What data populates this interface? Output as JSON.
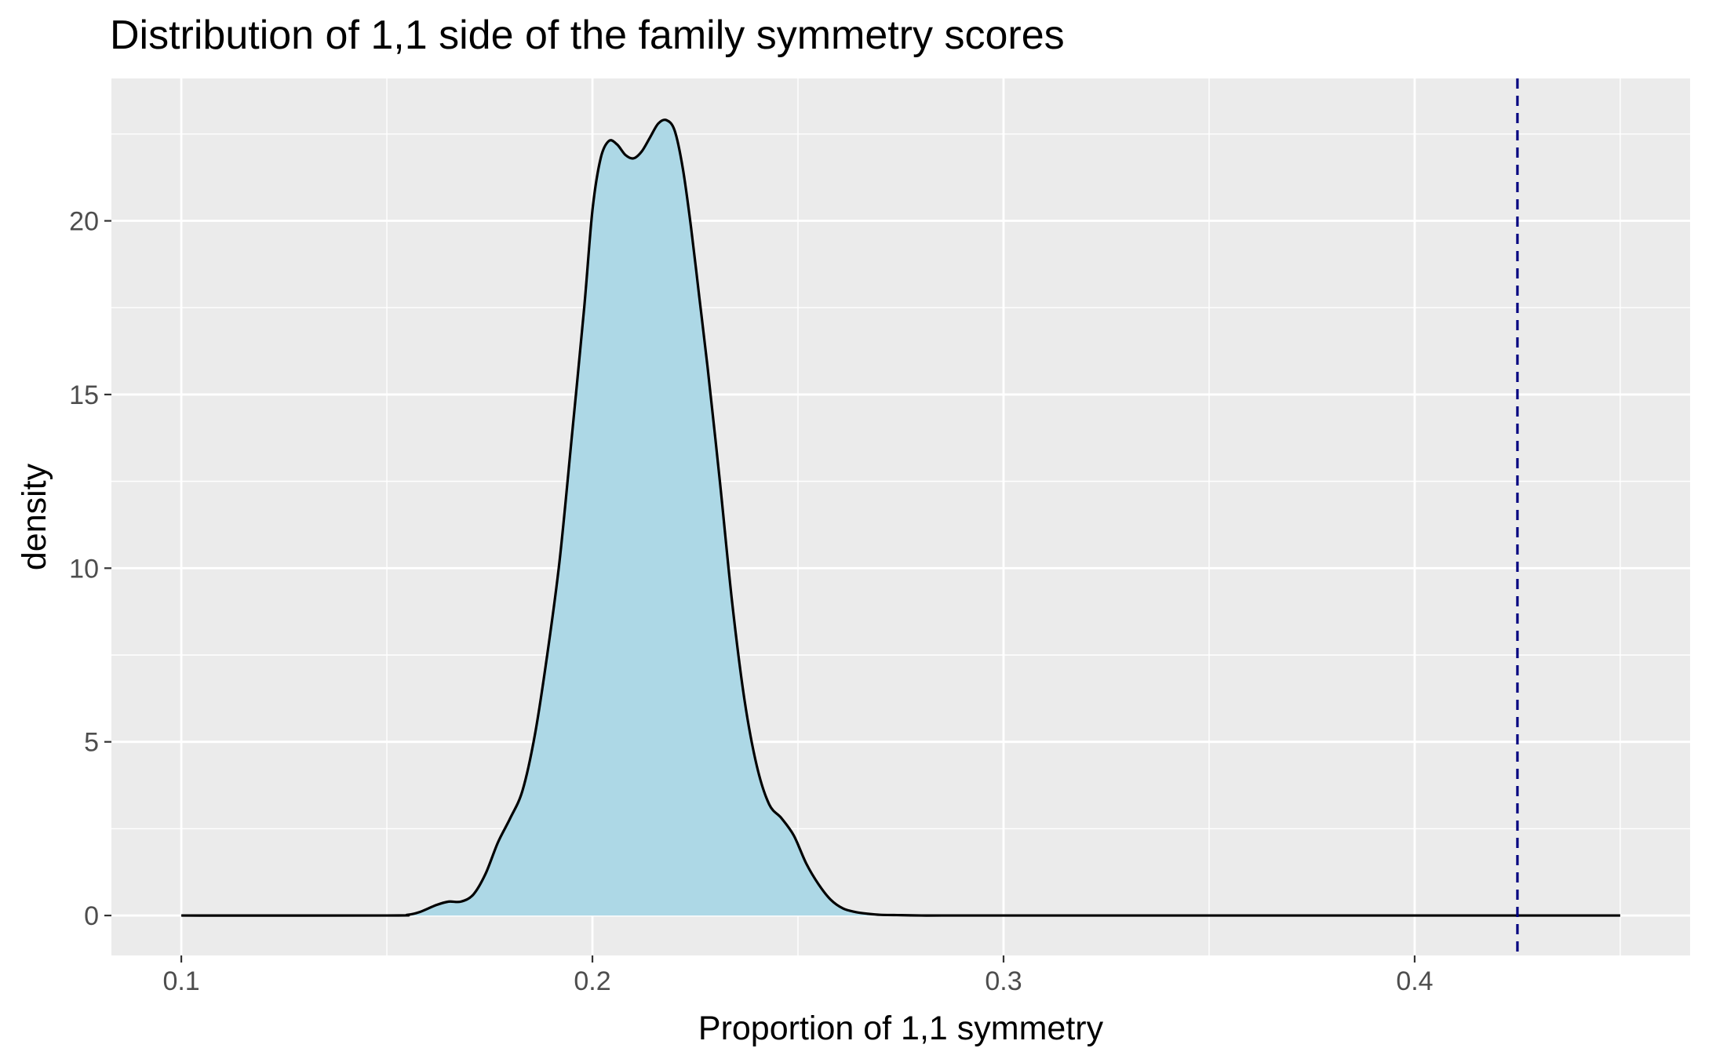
{
  "chart_data": {
    "type": "area",
    "title": "Distribution of 1,1 side of the family symmetry scores",
    "xlabel": "Proportion of 1,1 symmetry",
    "ylabel": "density",
    "xlim": [
      0.083,
      0.467
    ],
    "ylim": [
      -1.15,
      24.1
    ],
    "x_ticks": [
      0.1,
      0.2,
      0.3,
      0.4
    ],
    "x_tick_labels": [
      "0.1",
      "0.2",
      "0.3",
      "0.4"
    ],
    "y_ticks": [
      0,
      5,
      10,
      15,
      20
    ],
    "y_tick_labels": [
      "0",
      "5",
      "10",
      "15",
      "20"
    ],
    "grid": true,
    "fill_color": "#add8e6",
    "line_color": "#000000",
    "panel_background": "#ebebeb",
    "reference_line": {
      "x": 0.425,
      "color": "#000080",
      "style": "dashed"
    },
    "series": [
      {
        "x": [
          0.1,
          0.15,
          0.155,
          0.158,
          0.162,
          0.165,
          0.168,
          0.171,
          0.174,
          0.177,
          0.18,
          0.183,
          0.186,
          0.189,
          0.192,
          0.195,
          0.198,
          0.2,
          0.202,
          0.204,
          0.206,
          0.208,
          0.21,
          0.212,
          0.214,
          0.216,
          0.218,
          0.22,
          0.222,
          0.224,
          0.226,
          0.228,
          0.231,
          0.234,
          0.237,
          0.24,
          0.243,
          0.246,
          0.249,
          0.252,
          0.255,
          0.258,
          0.261,
          0.264,
          0.267,
          0.27,
          0.275,
          0.28,
          0.285,
          0.3,
          0.35,
          0.4,
          0.45
        ],
        "y": [
          0,
          0,
          0.02,
          0.1,
          0.3,
          0.4,
          0.4,
          0.6,
          1.2,
          2.1,
          2.8,
          3.6,
          5.2,
          7.5,
          10.2,
          13.8,
          17.5,
          20.3,
          21.8,
          22.3,
          22.2,
          21.9,
          21.8,
          22.0,
          22.4,
          22.8,
          22.9,
          22.6,
          21.5,
          19.8,
          17.8,
          15.8,
          12.5,
          9.0,
          6.2,
          4.3,
          3.2,
          2.8,
          2.3,
          1.5,
          0.9,
          0.45,
          0.2,
          0.1,
          0.05,
          0.02,
          0.01,
          0,
          0,
          0,
          0,
          0,
          0
        ]
      }
    ]
  }
}
